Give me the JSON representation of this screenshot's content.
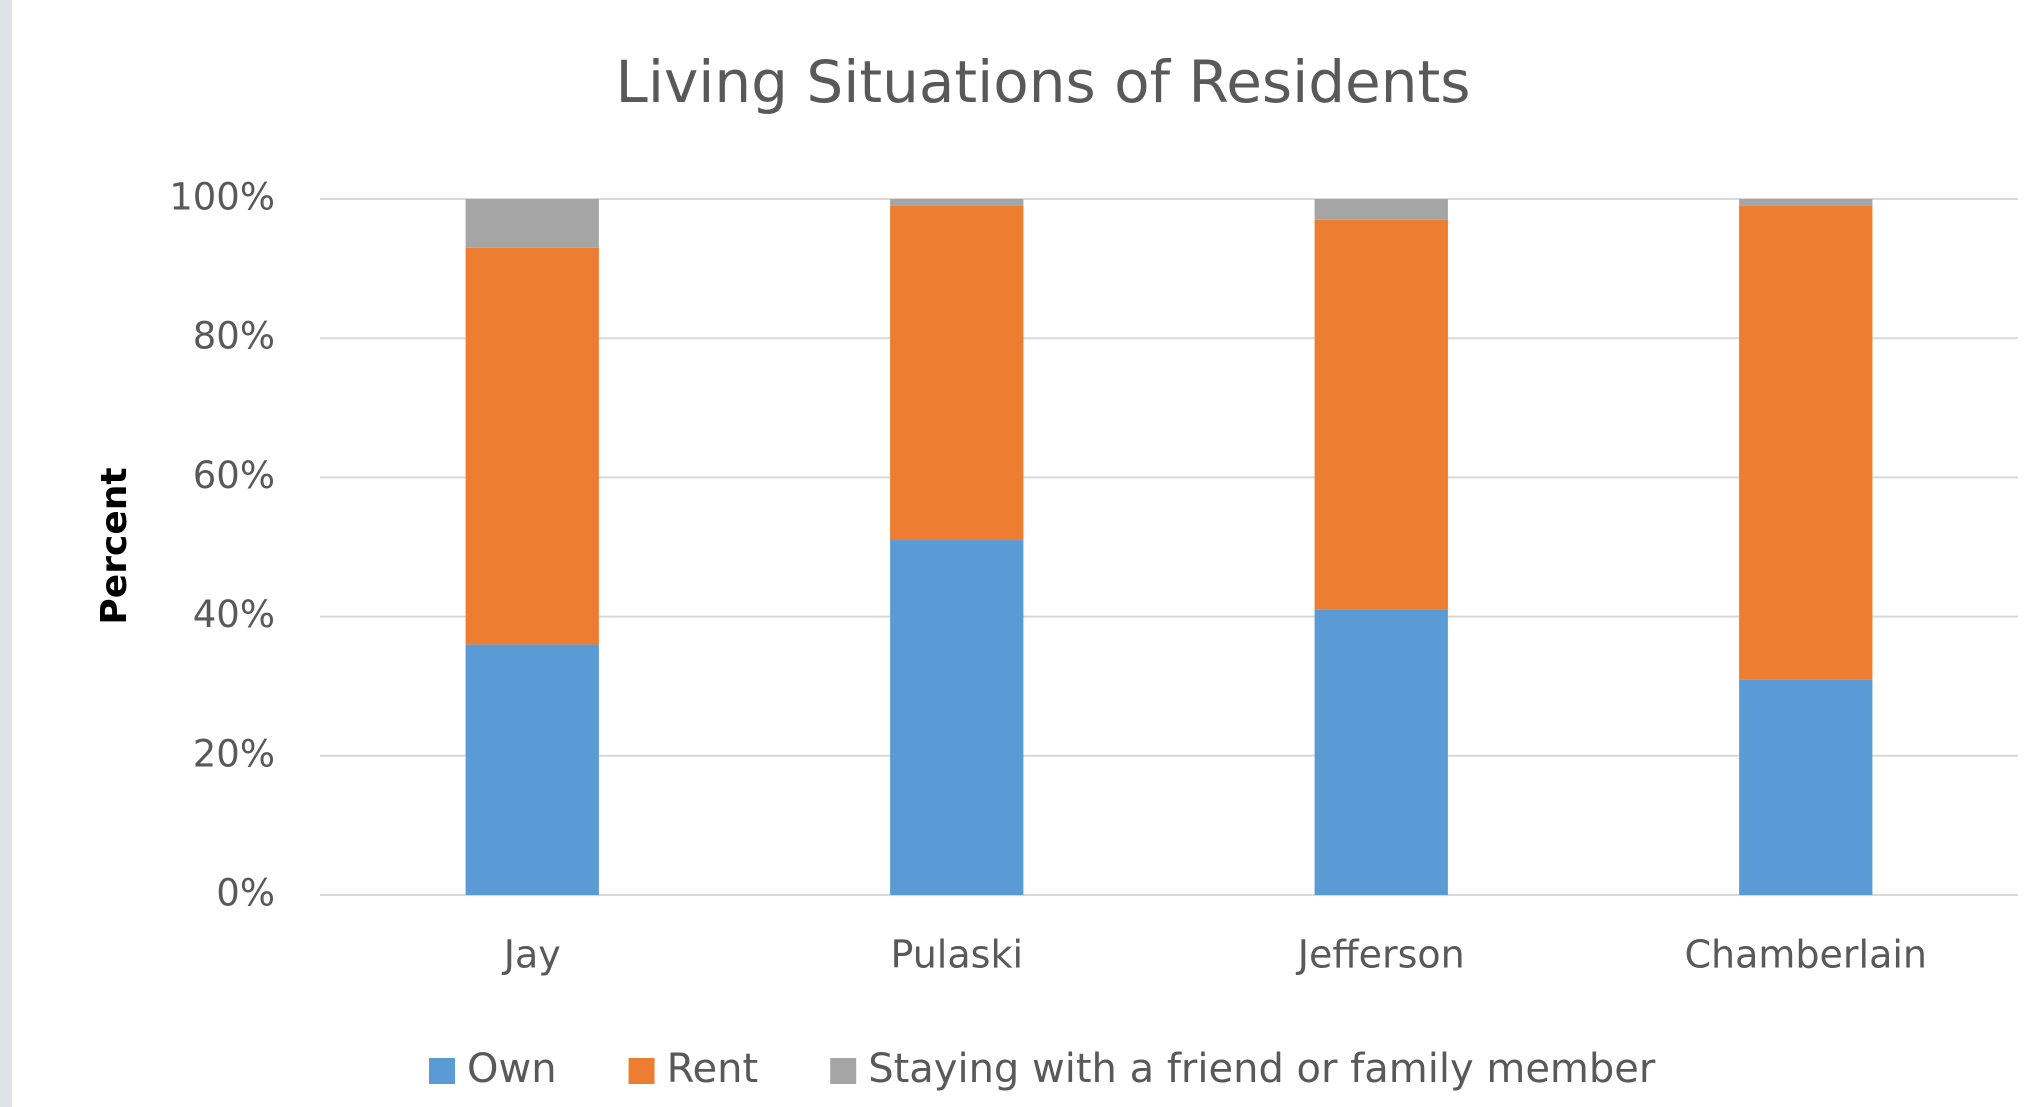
{
  "chart_data": {
    "type": "stacked_bar",
    "title": "Living Situations of Residents",
    "y_label": "Percent",
    "categories": [
      "Jay",
      "Pulaski",
      "Jefferson",
      "Chamberlain"
    ],
    "series": [
      {
        "name": "Own",
        "color": "#5b9bd5",
        "values": [
          36,
          51,
          41,
          31
        ]
      },
      {
        "name": "Rent",
        "color": "#ed7d31",
        "values": [
          57,
          48,
          56,
          68
        ]
      },
      {
        "name": "Staying with a friend or family member",
        "color": "#a5a5a5",
        "values": [
          7,
          1,
          3,
          1
        ]
      }
    ],
    "ylim": [
      0,
      100
    ],
    "yticks": [
      {
        "value": 0,
        "label": "0%"
      },
      {
        "value": 20,
        "label": "20%"
      },
      {
        "value": 40,
        "label": "40%"
      },
      {
        "value": 60,
        "label": "60%"
      },
      {
        "value": 80,
        "label": "80%"
      },
      {
        "value": 100,
        "label": "100%"
      }
    ],
    "grid": true,
    "legend": "bottom"
  }
}
